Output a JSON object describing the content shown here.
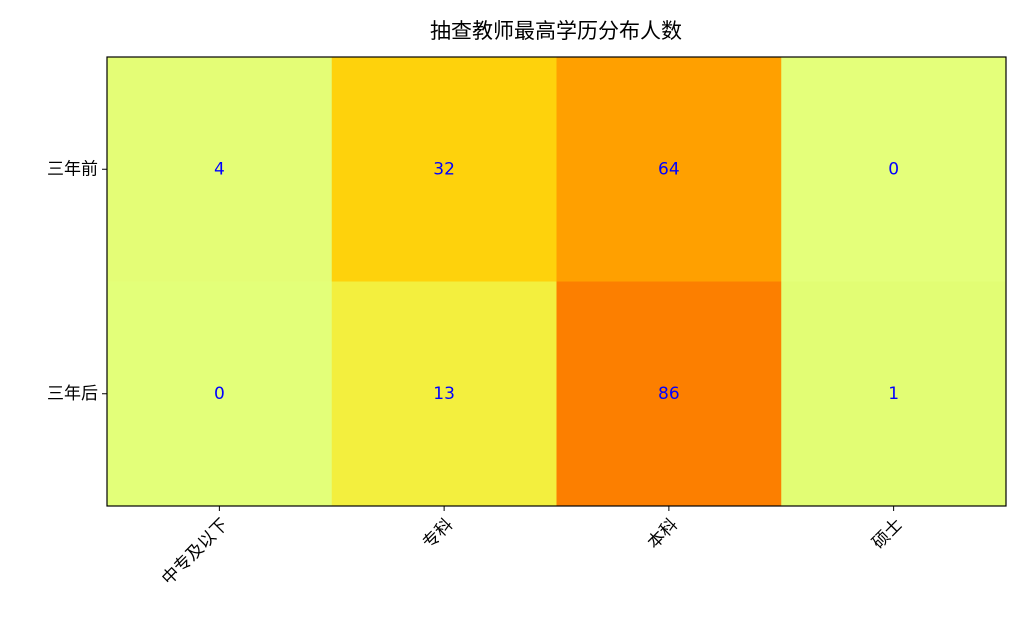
{
  "chart_data": {
    "type": "heatmap",
    "title": "抽查教师最高学历分布人数",
    "x_categories": [
      "中专及以下",
      "专科",
      "本科",
      "硕士"
    ],
    "y_categories": [
      "三年前",
      "三年后"
    ],
    "values": [
      [
        4,
        32,
        64,
        0
      ],
      [
        0,
        13,
        86,
        1
      ]
    ],
    "colors": [
      [
        "#e4fd76",
        "#fed20c",
        "#ffa000",
        "#e4ff7a"
      ],
      [
        "#e3ff79",
        "#f3ef3e",
        "#fc7f00",
        "#e2fd74"
      ]
    ],
    "value_color": "#0000ff"
  }
}
